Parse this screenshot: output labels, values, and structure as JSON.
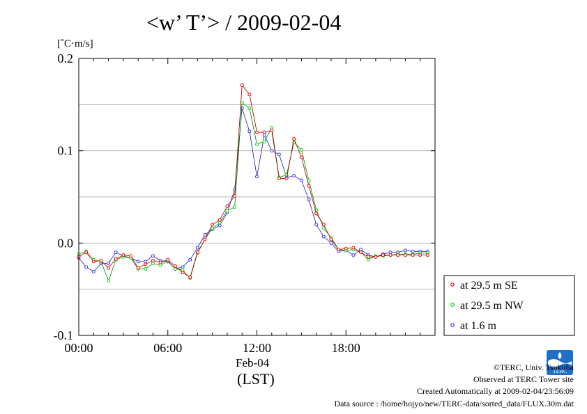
{
  "title": "<w’ T’> / 2009-02-04",
  "credits": [
    "©TERC, Univ. Tsukuba",
    "Observed at TERC Tower site",
    "Created Automatically at 2009-02-04/23:56:09",
    "Data source : /home/hojyo/new/TERC-data/sorted_data/FLUX.30m.dat"
  ],
  "logo_text": "TERC",
  "chart_data": {
    "type": "line",
    "title": "<w’ T’> / 2009-02-04",
    "ylabel": "[˚C·m/s]",
    "xlabel": "Feb-04",
    "xlabel2": "(LST)",
    "ylim": [
      -0.1,
      0.2
    ],
    "yticks": [
      -0.1,
      0.0,
      0.1,
      0.2
    ],
    "ytick_labels": [
      "-0.1",
      "0.0",
      "0.1",
      "0.2"
    ],
    "ygrid": [
      -0.05,
      0.0,
      0.05,
      0.1,
      0.15
    ],
    "xlim_hours": [
      0,
      24
    ],
    "xticks_hours": [
      0,
      6,
      12,
      18
    ],
    "xtick_labels": [
      "00:00",
      "06:00",
      "12:00",
      "18:00"
    ],
    "legend_position": "lower-right outside",
    "x": [
      0,
      0.5,
      1,
      1.5,
      2,
      2.5,
      3,
      3.5,
      4,
      4.5,
      5,
      5.5,
      6,
      6.5,
      7,
      7.5,
      8,
      8.5,
      9,
      9.5,
      10,
      10.5,
      11,
      11.5,
      12,
      12.5,
      13,
      13.5,
      14,
      14.5,
      15,
      15.5,
      16,
      16.5,
      17,
      17.5,
      18,
      18.5,
      19,
      19.5,
      20,
      20.5,
      21,
      21.5,
      22,
      22.5,
      23,
      23.5
    ],
    "series": [
      {
        "name": "at 29.5 m SE",
        "color": "#ff0000",
        "values": [
          -0.015,
          -0.01,
          -0.02,
          -0.019,
          -0.027,
          -0.017,
          -0.013,
          -0.014,
          -0.027,
          -0.023,
          -0.019,
          -0.021,
          -0.018,
          -0.025,
          -0.032,
          -0.037,
          -0.01,
          0.004,
          0.02,
          0.025,
          0.04,
          0.051,
          0.171,
          0.161,
          0.12,
          0.12,
          0.122,
          0.07,
          0.07,
          0.113,
          0.093,
          0.062,
          0.032,
          0.02,
          0.004,
          -0.007,
          -0.006,
          -0.005,
          -0.01,
          -0.015,
          -0.015,
          -0.013,
          -0.013,
          -0.013,
          -0.013,
          -0.013,
          -0.013,
          -0.013
        ]
      },
      {
        "name": "at 29.5 m NW",
        "color": "#00dd00",
        "values": [
          -0.012,
          -0.009,
          -0.018,
          -0.02,
          -0.041,
          -0.018,
          -0.015,
          -0.016,
          -0.028,
          -0.028,
          -0.022,
          -0.024,
          -0.019,
          -0.028,
          -0.029,
          -0.038,
          -0.011,
          0.004,
          0.016,
          0.022,
          0.035,
          0.039,
          0.152,
          0.146,
          0.107,
          0.11,
          0.125,
          0.071,
          0.074,
          0.109,
          0.101,
          0.068,
          0.036,
          0.016,
          0.006,
          -0.007,
          -0.008,
          -0.007,
          -0.01,
          -0.018,
          -0.014,
          -0.014,
          -0.013,
          -0.012,
          -0.012,
          -0.012,
          -0.011,
          -0.011
        ]
      },
      {
        "name": "at 1.6 m",
        "color": "#3333ff",
        "values": [
          -0.016,
          -0.026,
          -0.031,
          -0.022,
          -0.022,
          -0.01,
          -0.014,
          -0.016,
          -0.02,
          -0.02,
          -0.014,
          -0.019,
          -0.02,
          -0.028,
          -0.026,
          -0.018,
          -0.005,
          0.009,
          0.015,
          0.019,
          0.033,
          0.058,
          0.146,
          0.121,
          0.072,
          0.117,
          0.1,
          0.096,
          0.071,
          0.073,
          0.068,
          0.047,
          0.02,
          0.007,
          0.0,
          -0.009,
          -0.008,
          -0.013,
          -0.007,
          -0.013,
          -0.015,
          -0.012,
          -0.01,
          -0.01,
          -0.008,
          -0.009,
          -0.009,
          -0.009
        ]
      }
    ]
  }
}
